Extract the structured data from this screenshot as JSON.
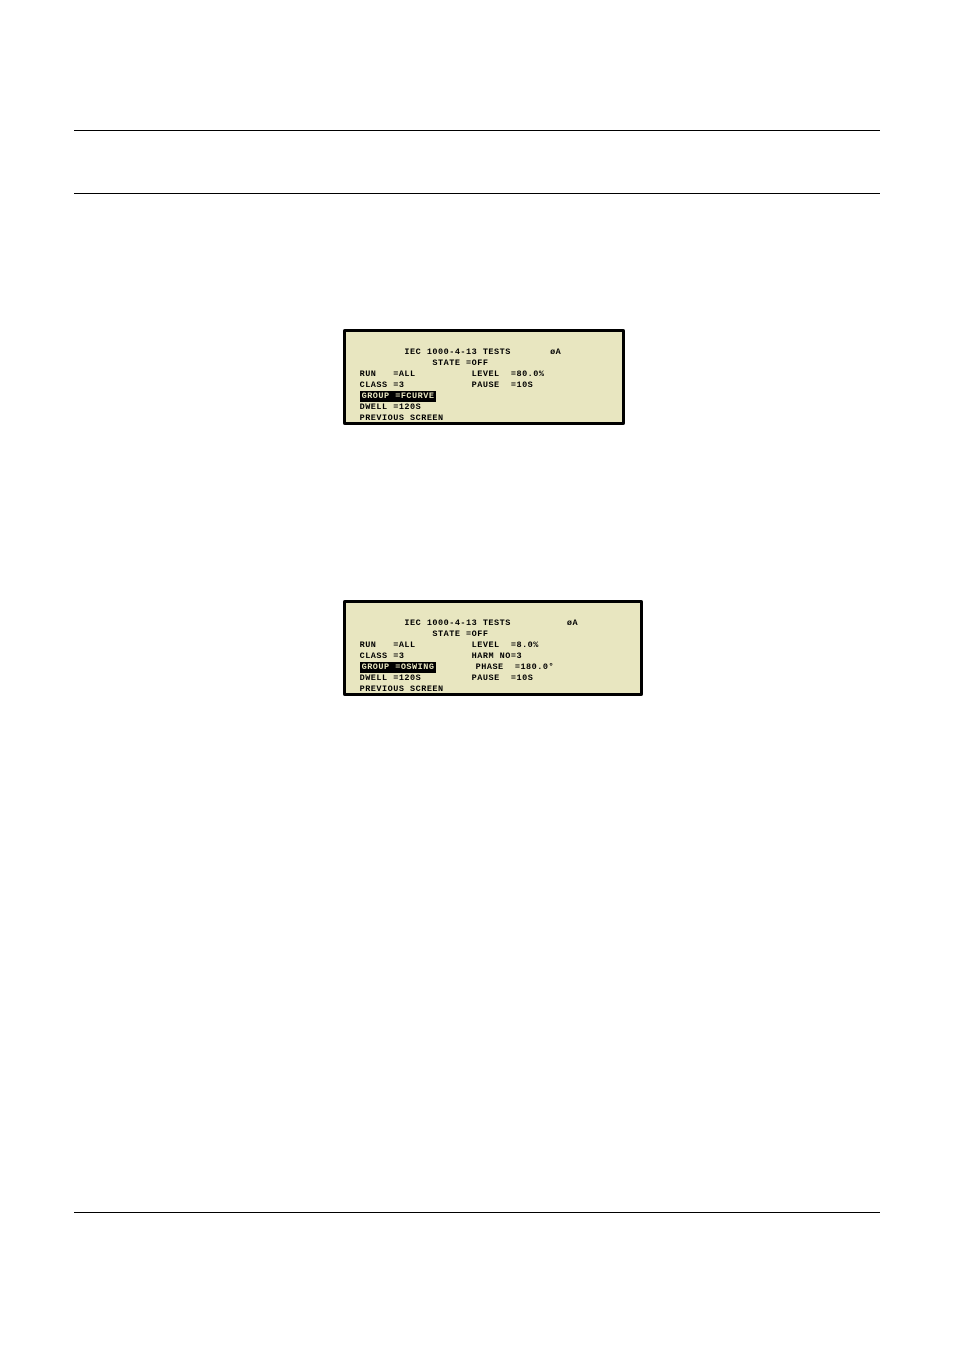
{
  "page": {
    "bg": "#ffffff",
    "rule_color": "#000000"
  },
  "lcd_colors": {
    "bg": "#e8e6c0",
    "fg": "#000000",
    "border": "#000000"
  },
  "screen1": {
    "title_left": "IEC 1000-4-13 TESTS",
    "title_right": "øA",
    "state_label": "STATE",
    "state_value": "=OFF",
    "run_label": "RUN",
    "run_value": "=ALL",
    "level_label": "LEVEL",
    "level_value": "=80.0%",
    "class_label": "CLASS",
    "class_value": "=3",
    "pause_label": "PAUSE",
    "pause_value": "=10S",
    "group_full": "GROUP =FCURVE",
    "dwell_label": "DWELL",
    "dwell_value": "=120S",
    "prev": "PREVIOUS SCREEN"
  },
  "screen2": {
    "title_left": "IEC 1000-4-13 TESTS",
    "title_right": "øA",
    "state_label": "STATE",
    "state_value": "=OFF",
    "run_label": "RUN",
    "run_value": "=ALL",
    "level_label": "LEVEL",
    "level_value": "=8.0%",
    "class_label": "CLASS",
    "class_value": "=3",
    "harm_label": "HARM NO",
    "harm_value": "=3",
    "group_full": "GROUP =OSWING",
    "phase_label": "PHASE",
    "phase_value": "=180.0°",
    "dwell_label": "DWELL",
    "dwell_value": "=120S",
    "pause_label": "PAUSE",
    "pause_value": "=10S",
    "prev": "PREVIOUS SCREEN"
  }
}
